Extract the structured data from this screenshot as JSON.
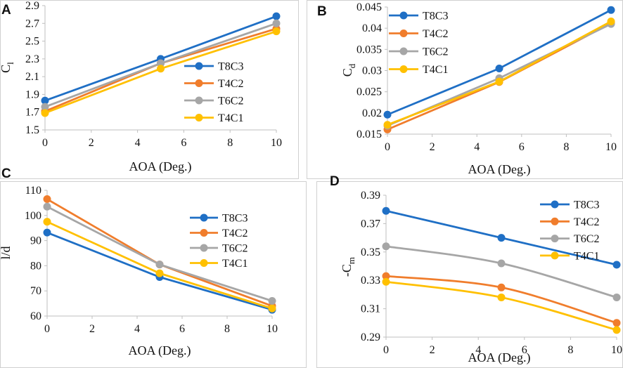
{
  "colors": {
    "T8C3": "#1f6fc5",
    "T4C2": "#f07d2c",
    "T6C2": "#a6a6a6",
    "T4C1": "#ffc000"
  },
  "chart_data": [
    {
      "id": "A",
      "panel_label": "A",
      "type": "line",
      "xlabel": "AOA (Deg.)",
      "ylabel_main": "C",
      "ylabel_sub": "l",
      "x": [
        0,
        5,
        10
      ],
      "xlim": [
        0,
        10
      ],
      "xticks": [
        0,
        2,
        4,
        6,
        8,
        10
      ],
      "xtick_labels": [
        "0",
        "2",
        "4",
        "6",
        "8",
        "10"
      ],
      "ylim": [
        1.5,
        2.9
      ],
      "yticks": [
        1.5,
        1.7,
        1.9,
        2.1,
        2.3,
        2.5,
        2.7,
        2.9
      ],
      "ytick_labels": [
        "1.5",
        "1.7",
        "1.9",
        "2.1",
        "2.3",
        "2.5",
        "2.7",
        "2.9"
      ],
      "legend_position": "bottom-right",
      "series": [
        {
          "name": "T8C3",
          "values": [
            1.83,
            2.3,
            2.78
          ]
        },
        {
          "name": "T4C2",
          "values": [
            1.71,
            2.25,
            2.64
          ]
        },
        {
          "name": "T6C2",
          "values": [
            1.76,
            2.25,
            2.7
          ]
        },
        {
          "name": "T4C1",
          "values": [
            1.69,
            2.19,
            2.61
          ]
        }
      ]
    },
    {
      "id": "B",
      "panel_label": "B",
      "type": "line",
      "xlabel": "AOA (Deg.)",
      "ylabel_main": "C",
      "ylabel_sub": "d",
      "x": [
        0,
        5,
        10
      ],
      "xlim": [
        0,
        10
      ],
      "xticks": [
        0,
        2,
        4,
        6,
        8,
        10
      ],
      "xtick_labels": [
        "0",
        "2",
        "4",
        "6",
        "8",
        "10"
      ],
      "ylim": [
        0.015,
        0.045
      ],
      "yticks": [
        0.015,
        0.02,
        0.025,
        0.03,
        0.035,
        0.04,
        0.045
      ],
      "ytick_labels": [
        "0.015",
        "0.02",
        "0.025",
        "0.03",
        "0.035",
        "0.04",
        "0.045"
      ],
      "legend_position": "top-left",
      "series": [
        {
          "name": "T8C3",
          "values": [
            0.0196,
            0.0305,
            0.0443
          ]
        },
        {
          "name": "T4C2",
          "values": [
            0.0161,
            0.0273,
            0.0412
          ]
        },
        {
          "name": "T6C2",
          "values": [
            0.017,
            0.0282,
            0.041
          ]
        },
        {
          "name": "T4C1",
          "values": [
            0.0172,
            0.0274,
            0.0416
          ]
        }
      ]
    },
    {
      "id": "C",
      "panel_label": "C",
      "type": "line",
      "xlabel": "AOA (Deg.)",
      "ylabel_main": "l/d",
      "ylabel_sub": "",
      "x": [
        0,
        5,
        10
      ],
      "xlim": [
        0,
        10
      ],
      "xticks": [
        0,
        2,
        4,
        6,
        8,
        10
      ],
      "xtick_labels": [
        "0",
        "2",
        "4",
        "6",
        "8",
        "10"
      ],
      "ylim": [
        60,
        110
      ],
      "yticks": [
        60,
        70,
        80,
        90,
        100,
        110
      ],
      "ytick_labels": [
        "60",
        "70",
        "80",
        "90",
        "100",
        "110"
      ],
      "legend_position": "top-right",
      "series": [
        {
          "name": "T8C3",
          "values": [
            93.2,
            75.5,
            62.5
          ]
        },
        {
          "name": "T4C2",
          "values": [
            106.5,
            80.5,
            64.0
          ]
        },
        {
          "name": "T6C2",
          "values": [
            103.5,
            80.5,
            66.0
          ]
        },
        {
          "name": "T4C1",
          "values": [
            97.5,
            77.0,
            63.0
          ]
        }
      ]
    },
    {
      "id": "D",
      "panel_label": "D",
      "type": "line",
      "xlabel": "AOA (Deg.)",
      "ylabel_main": "-C",
      "ylabel_sub": "m",
      "x": [
        0,
        5,
        10
      ],
      "xlim": [
        0,
        10
      ],
      "xticks": [
        0,
        2,
        4,
        6,
        8,
        10
      ],
      "xtick_labels": [
        "0",
        "2",
        "4",
        "6",
        "8",
        "10"
      ],
      "ylim": [
        0.29,
        0.39
      ],
      "yticks": [
        0.29,
        0.31,
        0.33,
        0.35,
        0.37,
        0.39
      ],
      "ytick_labels": [
        "0.29",
        "0.31",
        "0.33",
        "0.35",
        "0.37",
        "0.39"
      ],
      "legend_position": "top-right",
      "series": [
        {
          "name": "T8C3",
          "values": [
            0.379,
            0.36,
            0.341
          ]
        },
        {
          "name": "T4C2",
          "values": [
            0.333,
            0.325,
            0.3
          ]
        },
        {
          "name": "T6C2",
          "values": [
            0.354,
            0.342,
            0.318
          ]
        },
        {
          "name": "T4C1",
          "values": [
            0.329,
            0.318,
            0.295
          ]
        }
      ]
    }
  ]
}
